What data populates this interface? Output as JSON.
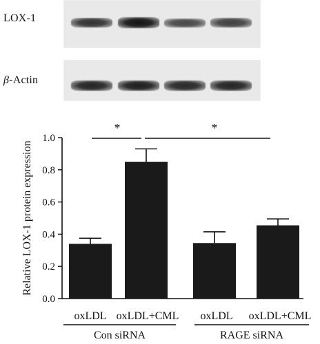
{
  "blots": {
    "lox_label": "LOX-1",
    "actin_beta": "β",
    "actin_text": "-Actin",
    "lox_intensity": [
      0.72,
      1.0,
      0.55,
      0.62
    ],
    "actin_intensity": [
      0.85,
      0.9,
      0.82,
      0.85
    ]
  },
  "chart_data": {
    "type": "bar",
    "ylabel": "Relative LOX-1 protein expression",
    "ylim": [
      0,
      1.0
    ],
    "yticks": [
      "0.0",
      "0.2",
      "0.4",
      "0.6",
      "0.8",
      "1.0"
    ],
    "categories": [
      "oxLDL",
      "oxLDL+CML",
      "oxLDL",
      "oxLDL+CML"
    ],
    "values": [
      0.34,
      0.85,
      0.345,
      0.455
    ],
    "errors": [
      0.035,
      0.08,
      0.07,
      0.04
    ],
    "bar_color": "#1a1a1a",
    "groups": [
      {
        "label": "Con siRNA",
        "members": [
          0,
          1
        ]
      },
      {
        "label": "RAGE siRNA",
        "members": [
          2,
          3
        ]
      }
    ],
    "significance": [
      {
        "label": "*",
        "from": 0,
        "to": 1
      },
      {
        "label": "*",
        "from": 1,
        "to": 3
      }
    ]
  }
}
